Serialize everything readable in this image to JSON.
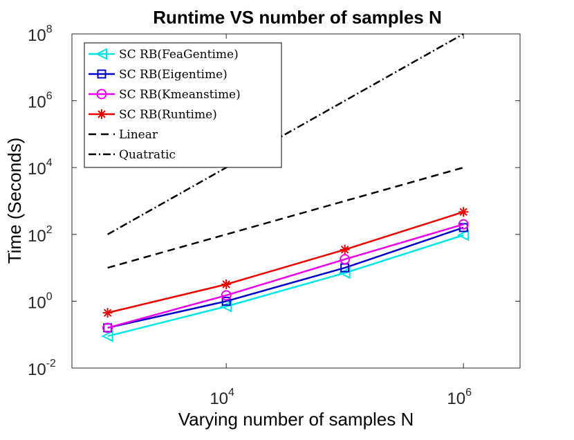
{
  "chart_data": {
    "type": "line",
    "title": "Runtime VS number of samples N",
    "xlabel": "Varying number of samples N",
    "ylabel": "Time (Seconds)",
    "xscale": "log",
    "yscale": "log",
    "xlim": [
      500,
      3000000
    ],
    "ylim": [
      0.01,
      100000000
    ],
    "xticks": [
      {
        "value": 10000,
        "base": "10",
        "exp": "4"
      },
      {
        "value": 1000000,
        "base": "10",
        "exp": "6"
      }
    ],
    "yticks": [
      {
        "value": 0.01,
        "base": "10",
        "exp": "-2"
      },
      {
        "value": 1,
        "base": "10",
        "exp": "0"
      },
      {
        "value": 100,
        "base": "10",
        "exp": "2"
      },
      {
        "value": 10000,
        "base": "10",
        "exp": "4"
      },
      {
        "value": 1000000,
        "base": "10",
        "exp": "6"
      },
      {
        "value": 100000000,
        "base": "10",
        "exp": "8"
      }
    ],
    "grid": false,
    "legend_position": "top-left",
    "series": [
      {
        "name": "SC_RB(FeaGentime)",
        "color": "#00e5e5",
        "marker": "triangle-left",
        "line": "solid",
        "x": [
          1000,
          10000,
          100000,
          1000000
        ],
        "y": [
          0.09,
          0.7,
          7,
          95
        ]
      },
      {
        "name": "SC_RB(Eigentime)",
        "color": "#0000cc",
        "marker": "square",
        "line": "solid",
        "x": [
          1000,
          10000,
          100000,
          1000000
        ],
        "y": [
          0.16,
          1.0,
          10,
          160
        ]
      },
      {
        "name": "SC_RB(Kmeanstime)",
        "color": "#ee00ee",
        "marker": "circle",
        "line": "solid",
        "x": [
          1000,
          10000,
          100000,
          1000000
        ],
        "y": [
          0.16,
          1.5,
          18,
          200
        ]
      },
      {
        "name": "SC_RB(Runtime)",
        "color": "#ee0000",
        "marker": "asterisk",
        "line": "solid",
        "x": [
          1000,
          10000,
          100000,
          1000000
        ],
        "y": [
          0.45,
          3.2,
          35,
          470
        ]
      },
      {
        "name": "Linear",
        "color": "#000000",
        "marker": "none",
        "line": "dashed",
        "x": [
          1000,
          10000,
          100000,
          1000000
        ],
        "y": [
          10,
          100,
          1000,
          10000
        ]
      },
      {
        "name": "Quatratic",
        "color": "#000000",
        "marker": "none",
        "line": "dashdot",
        "x": [
          1000,
          10000,
          100000,
          1000000
        ],
        "y": [
          100,
          10000,
          1000000,
          100000000
        ]
      }
    ],
    "legend": [
      {
        "label": "SC RB(FeaGentime)",
        "series": 0
      },
      {
        "label": "SC RB(Eigentime)",
        "series": 1
      },
      {
        "label": "SC RB(Kmeanstime)",
        "series": 2
      },
      {
        "label": "SC RB(Runtime)",
        "series": 3
      },
      {
        "label": "Linear",
        "series": 4
      },
      {
        "label": "Quatratic",
        "series": 5
      }
    ]
  }
}
